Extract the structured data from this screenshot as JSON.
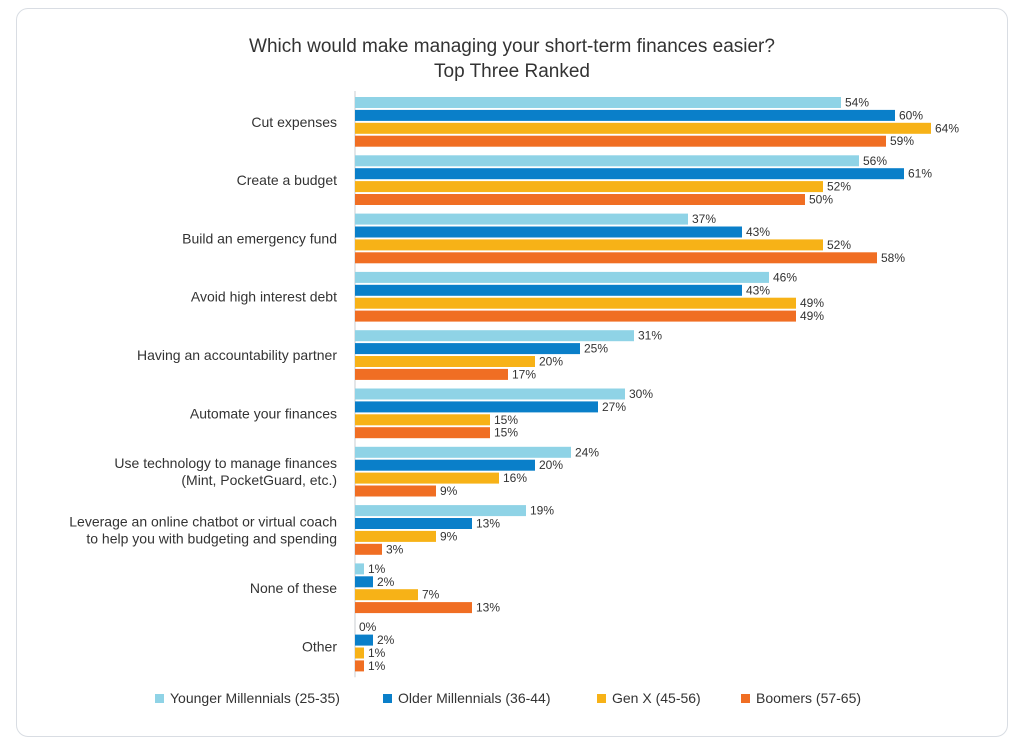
{
  "chart_data": {
    "type": "bar",
    "orientation": "horizontal",
    "title": "Which would make managing your short-term finances easier?",
    "subtitle": "Top Three Ranked",
    "categories": [
      [
        "Cut expenses"
      ],
      [
        "Create a budget"
      ],
      [
        "Build an emergency fund"
      ],
      [
        "Avoid high interest debt"
      ],
      [
        "Having an accountability partner"
      ],
      [
        "Automate your finances"
      ],
      [
        "Use technology to manage finances",
        "(Mint, PocketGuard, etc.)"
      ],
      [
        "Leverage an online chatbot or virtual coach",
        "to help you with budgeting and spending"
      ],
      [
        "None of these"
      ],
      [
        "Other"
      ]
    ],
    "series": [
      {
        "name": "Younger Millennials (25-35)",
        "color": "#8fd3e6",
        "values": [
          54,
          56,
          37,
          46,
          31,
          30,
          24,
          19,
          1,
          0
        ]
      },
      {
        "name": "Older Millennials (36-44)",
        "color": "#0a7fc9",
        "values": [
          60,
          61,
          43,
          43,
          25,
          27,
          20,
          13,
          2,
          2
        ]
      },
      {
        "name": "Gen X (45-56)",
        "color": "#f7b217",
        "values": [
          64,
          52,
          52,
          49,
          20,
          15,
          16,
          9,
          7,
          1
        ]
      },
      {
        "name": "Boomers (57-65)",
        "color": "#f06e23",
        "values": [
          59,
          50,
          58,
          49,
          17,
          15,
          9,
          3,
          13,
          1
        ]
      }
    ],
    "value_suffix": "%",
    "xlim": [
      0,
      70
    ],
    "grid": false,
    "legend_position": "bottom"
  }
}
